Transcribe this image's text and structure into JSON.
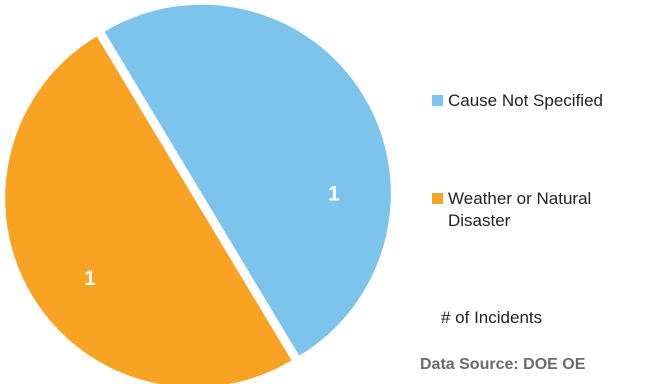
{
  "chart_data": {
    "type": "pie",
    "title": "",
    "categories": [
      "Cause Not Specified",
      "Weather or Natural Disaster"
    ],
    "values": [
      1,
      1
    ],
    "data_labels": [
      "1",
      "1"
    ],
    "colors": [
      "#7cc4ec",
      "#f9a324"
    ],
    "legend_position": "right",
    "exploded": true,
    "legend_note": "# of Incidents",
    "source": "Data Source: DOE OE"
  }
}
